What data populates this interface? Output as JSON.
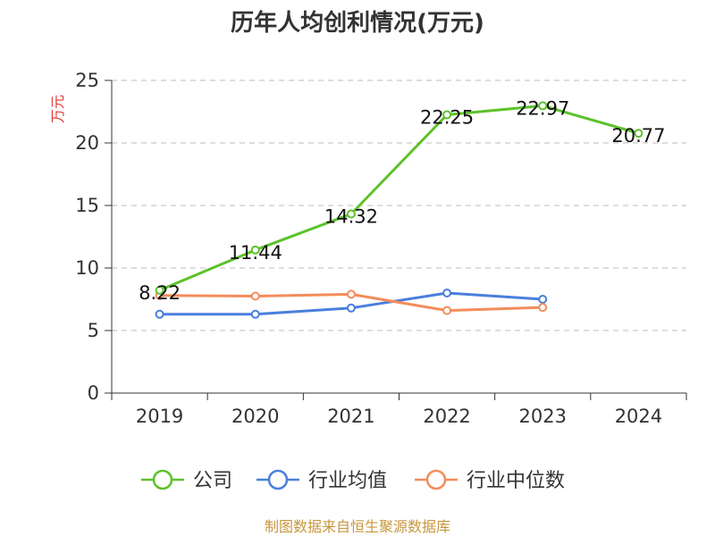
{
  "chart_data": {
    "type": "line",
    "title": "历年人均创利情况(万元)",
    "ylabel": "万元",
    "xlabel": "",
    "categories": [
      "2019",
      "2020",
      "2021",
      "2022",
      "2023",
      "2024"
    ],
    "ylim": [
      0,
      25
    ],
    "yticks": [
      0,
      5,
      10,
      15,
      20,
      25
    ],
    "grid": true,
    "legend_position": "bottom",
    "series": [
      {
        "name": "公司",
        "color": "#5cc22a",
        "values": [
          8.22,
          11.44,
          14.32,
          22.25,
          22.97,
          20.77
        ],
        "labels": [
          "8.22",
          "11.44",
          "14.32",
          "22.25",
          "22.97",
          "20.77"
        ]
      },
      {
        "name": "行业均值",
        "color": "#4a7fdc",
        "values": [
          6.3,
          6.3,
          6.8,
          8.0,
          7.5,
          null
        ]
      },
      {
        "name": "行业中位数",
        "color": "#f48c5a",
        "values": [
          7.8,
          7.75,
          7.9,
          6.6,
          6.85,
          null
        ]
      }
    ],
    "source": "制图数据来自恒生聚源数据库",
    "colors": {
      "ylabel": "#e23a3a",
      "source": "#c8963c",
      "grid": "#bbbbbb",
      "axis": "#333333"
    }
  }
}
